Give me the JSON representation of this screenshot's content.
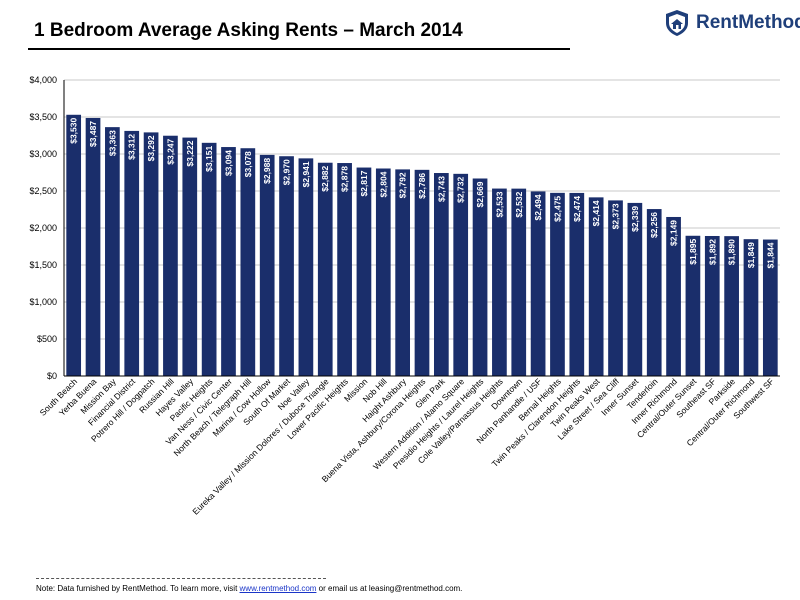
{
  "page": {
    "title": "1 Bedroom Average Asking Rents – March 2014",
    "logo_text": "RentMethod",
    "footer": {
      "text_before": "Note: Data furnished by RentMethod. To learn more, visit ",
      "link": "www.rentmethod.com",
      "text_after": " or email us at leasing@rentmethod.com."
    }
  },
  "colors": {
    "bar": "#1a2e6b",
    "grid": "#c8c8c8",
    "axis": "#000000",
    "label_text": "#ffffff",
    "logo": "#1f3f7a"
  },
  "icons": {
    "logo": "shield-home-icon"
  },
  "chart_data": {
    "type": "bar",
    "title": "1 Bedroom Average Asking Rents – March 2014",
    "xlabel": "",
    "ylabel": "",
    "ylim": [
      0,
      4000
    ],
    "yticks": [
      "$0",
      "$500",
      "$1,000",
      "$1,500",
      "$2,000",
      "$2,500",
      "$3,000",
      "$3,500",
      "$4,000"
    ],
    "grid": true,
    "categories": [
      "South Beach",
      "Yerba Buena",
      "Mission Bay",
      "Financial District",
      "Potrero Hill / Dogpatch",
      "Russian Hill",
      "Hayes Valley",
      "Pacific Heights",
      "Van Ness / Civic Center",
      "North Beach / Telegraph Hill",
      "Marina / Cow Hollow",
      "South Of Market",
      "Noe Valley",
      "Eureka Valley / Mission Dolores / Duboce Triangle",
      "Lower Pacific Heights",
      "Mission",
      "Nob Hill",
      "Haight Ashbury",
      "Buena Vista, Ashbury/Corona Heights",
      "Glen Park",
      "Western Addition / Alamo Square",
      "Presidio Heights / Laurel Heights",
      "Cole Valley/Parnassus Heights",
      "Downtown",
      "North Panhandle / USF",
      "Bernal Heights",
      "Twin Peaks / Clarendon Heights",
      "Twin Peaks West",
      "Lake Street / Sea Cliff",
      "Inner Sunset",
      "Tenderloin",
      "Inner Richmond",
      "Central/Outer Sunset",
      "Southeast SF",
      "Parkside",
      "Central/Outer Richmond",
      "Southwest SF"
    ],
    "values": [
      3530,
      3487,
      3363,
      3312,
      3292,
      3247,
      3222,
      3151,
      3094,
      3078,
      2988,
      2970,
      2941,
      2882,
      2878,
      2817,
      2804,
      2792,
      2786,
      2743,
      2732,
      2669,
      2533,
      2532,
      2494,
      2475,
      2474,
      2414,
      2373,
      2339,
      2256,
      2149,
      1895,
      1892,
      1890,
      1849,
      1844
    ],
    "data_labels": [
      "$3,530",
      "$3,487",
      "$3,363",
      "$3,312",
      "$3,292",
      "$3,247",
      "$3,222",
      "$3,151",
      "$3,094",
      "$3,078",
      "$2,988",
      "$2,970",
      "$2,941",
      "$2,882",
      "$2,878",
      "$2,817",
      "$2,804",
      "$2,792",
      "$2,786",
      "$2,743",
      "$2,732",
      "$2,669",
      "$2,533",
      "$2,532",
      "$2,494",
      "$2,475",
      "$2,474",
      "$2,414",
      "$2,373",
      "$2,339",
      "$2,256",
      "$2,149",
      "$1,895",
      "$1,892",
      "$1,890",
      "$1,849",
      "$1,844"
    ]
  }
}
